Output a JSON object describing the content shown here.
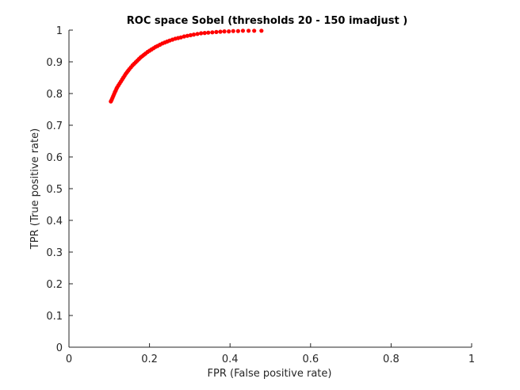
{
  "chart_data": {
    "type": "scatter",
    "title": "ROC space Sobel (thresholds 20 - 150  imadjust )",
    "xlabel": "FPR (False positive rate)",
    "ylabel": "TPR (True positive rate)",
    "xlim": [
      0,
      1
    ],
    "ylim": [
      0,
      1
    ],
    "x_ticks": [
      0,
      0.2,
      0.4,
      0.6,
      0.8,
      1
    ],
    "x_tick_labels": [
      "0",
      "0.2",
      "0.4",
      "0.6",
      "0.8",
      "1"
    ],
    "y_ticks": [
      0,
      0.1,
      0.2,
      0.3,
      0.4,
      0.5,
      0.6,
      0.7,
      0.8,
      0.9,
      1
    ],
    "y_tick_labels": [
      "0",
      "0.1",
      "0.2",
      "0.3",
      "0.4",
      "0.5",
      "0.6",
      "0.7",
      "0.8",
      "0.9",
      "1"
    ],
    "grid": false,
    "marker_color": "#ff0000",
    "series": [
      {
        "name": "Sobel ROC",
        "points": [
          [
            0.104,
            0.775
          ],
          [
            0.106,
            0.78
          ],
          [
            0.108,
            0.786
          ],
          [
            0.11,
            0.792
          ],
          [
            0.112,
            0.798
          ],
          [
            0.114,
            0.804
          ],
          [
            0.116,
            0.809
          ],
          [
            0.118,
            0.815
          ],
          [
            0.12,
            0.82
          ],
          [
            0.123,
            0.826
          ],
          [
            0.126,
            0.832
          ],
          [
            0.129,
            0.838
          ],
          [
            0.132,
            0.844
          ],
          [
            0.135,
            0.85
          ],
          [
            0.138,
            0.856
          ],
          [
            0.141,
            0.862
          ],
          [
            0.144,
            0.867
          ],
          [
            0.147,
            0.872
          ],
          [
            0.15,
            0.877
          ],
          [
            0.154,
            0.883
          ],
          [
            0.158,
            0.889
          ],
          [
            0.162,
            0.894
          ],
          [
            0.166,
            0.899
          ],
          [
            0.17,
            0.904
          ],
          [
            0.174,
            0.909
          ],
          [
            0.178,
            0.914
          ],
          [
            0.182,
            0.918
          ],
          [
            0.186,
            0.922
          ],
          [
            0.19,
            0.926
          ],
          [
            0.195,
            0.931
          ],
          [
            0.2,
            0.935
          ],
          [
            0.205,
            0.939
          ],
          [
            0.21,
            0.943
          ],
          [
            0.215,
            0.947
          ],
          [
            0.22,
            0.95
          ],
          [
            0.226,
            0.954
          ],
          [
            0.232,
            0.958
          ],
          [
            0.238,
            0.961
          ],
          [
            0.244,
            0.964
          ],
          [
            0.25,
            0.967
          ],
          [
            0.257,
            0.97
          ],
          [
            0.264,
            0.973
          ],
          [
            0.271,
            0.975
          ],
          [
            0.278,
            0.977
          ],
          [
            0.286,
            0.98
          ],
          [
            0.294,
            0.982
          ],
          [
            0.302,
            0.984
          ],
          [
            0.31,
            0.986
          ],
          [
            0.319,
            0.988
          ],
          [
            0.328,
            0.99
          ],
          [
            0.337,
            0.991
          ],
          [
            0.346,
            0.992
          ],
          [
            0.356,
            0.993
          ],
          [
            0.366,
            0.994
          ],
          [
            0.376,
            0.995
          ],
          [
            0.386,
            0.996
          ],
          [
            0.397,
            0.996
          ],
          [
            0.408,
            0.997
          ],
          [
            0.42,
            0.997
          ],
          [
            0.432,
            0.998
          ],
          [
            0.446,
            0.998
          ],
          [
            0.46,
            0.998
          ],
          [
            0.478,
            0.998
          ]
        ]
      }
    ]
  }
}
